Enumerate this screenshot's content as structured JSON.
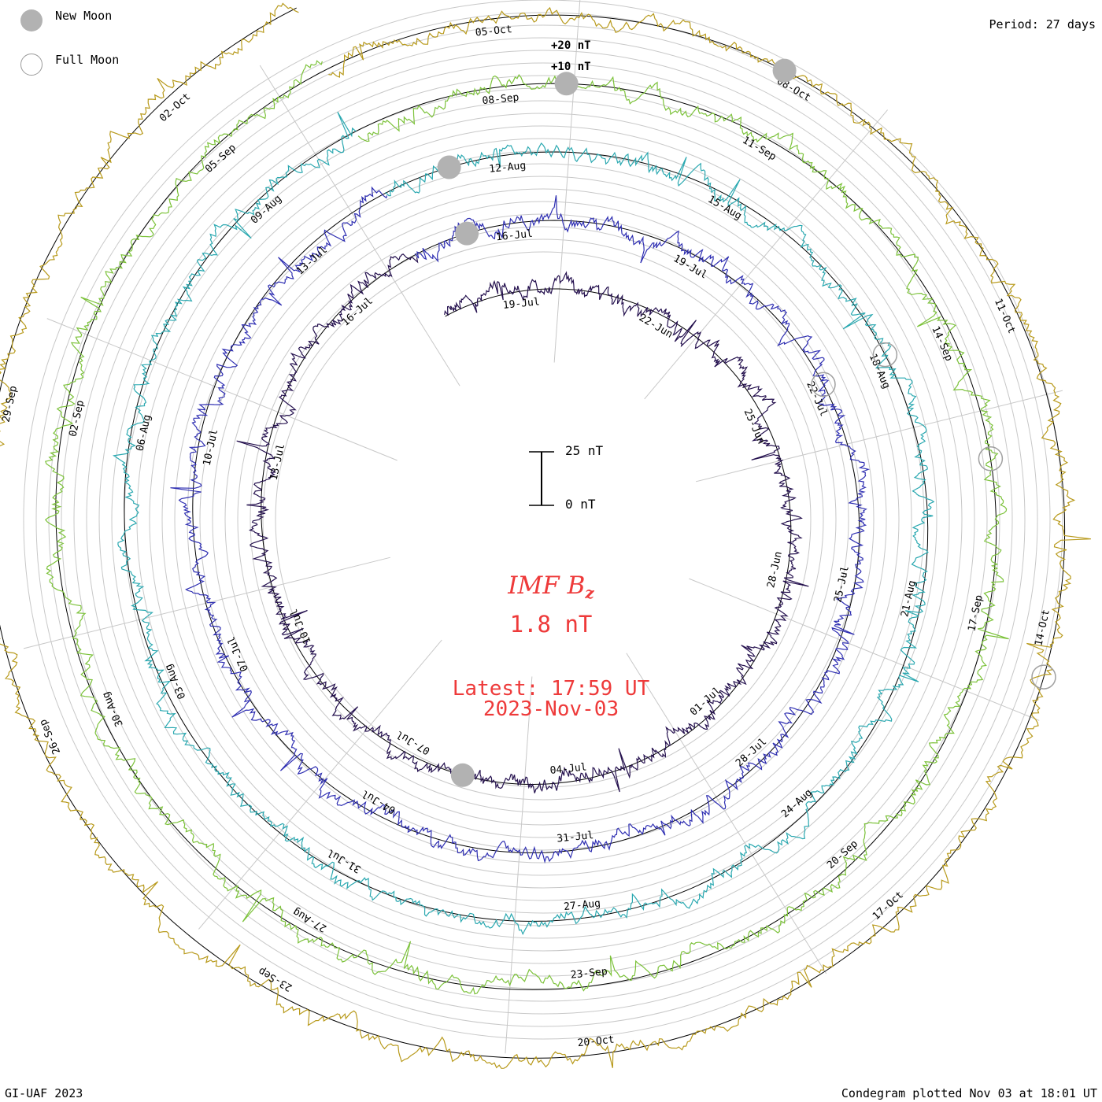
{
  "legend": {
    "new_moon": "New Moon",
    "full_moon": "Full Moon"
  },
  "period_label": "Period: 27 days",
  "credit": "GI-UAF 2023",
  "plotted": "Condegram plotted Nov 03 at 18:01 UT",
  "parameter": {
    "name": "IMF B",
    "subscript": "z",
    "current_value": "1.8 nT"
  },
  "latest": {
    "time": "Latest: 17:59 UT",
    "date": "2023-Nov-03"
  },
  "scale_bar": {
    "top": "25 nT",
    "bottom": "0 nT"
  },
  "colors": {
    "text_red": "#ee3a3a",
    "grid": "#c8c8c8",
    "zero_ring": "#000000",
    "new_moon": "#b2b2b2"
  },
  "chart_data": {
    "type": "line",
    "period_days": 27,
    "y_units": "nT",
    "reference_labels": [
      "+20 nT",
      "+10 nT"
    ],
    "series": [
      {
        "color": "#24104e",
        "start": "2023-06-22",
        "end": "2023-07-19"
      },
      {
        "color": "#2f2fb2",
        "start": "2023-07-19",
        "end": "2023-08-15"
      },
      {
        "color": "#2aa8b0",
        "start": "2023-08-15",
        "end": "2023-09-11"
      },
      {
        "color": "#7cc23a",
        "start": "2023-09-11",
        "end": "2023-10-08"
      },
      {
        "color": "#b89a1c",
        "start": "2023-10-08",
        "end": "2023-11-03"
      }
    ],
    "date_labels": [
      [
        "04-Jul",
        "01-Jul",
        "28-Jun",
        "25-Jun",
        "22-Jun",
        "19-Jul",
        "16-Jul",
        "13-Jul",
        "10-Jul",
        "07-Jul"
      ],
      [
        "31-Jul",
        "28-Jul",
        "25-Jul",
        "22-Jul",
        "19-Jul",
        "16-Jul",
        "13-Jul",
        "10-Jul",
        "07-Jul",
        "04-Jul"
      ],
      [
        "27-Aug",
        "24-Aug",
        "21-Aug",
        "18-Aug",
        "15-Aug",
        "12-Aug",
        "09-Aug",
        "06-Aug",
        "03-Aug",
        "31-Jul"
      ],
      [
        "23-Sep",
        "20-Sep",
        "17-Sep",
        "14-Sep",
        "11-Sep",
        "08-Sep",
        "05-Sep",
        "02-Sep",
        "30-Aug",
        "27-Aug"
      ],
      [
        "20-Oct",
        "17-Oct",
        "14-Oct",
        "11-Oct",
        "08-Oct",
        "05-Oct",
        "02-Oct",
        "29-Sep",
        "26-Sep",
        "23-Sep"
      ]
    ]
  }
}
